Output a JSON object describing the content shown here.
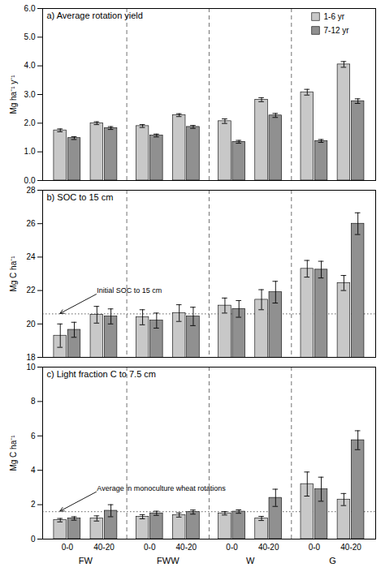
{
  "chart_data": [
    {
      "type": "bar",
      "title": "a) Average rotation yield",
      "ylabel": "Mg ha⁻¹ y⁻¹",
      "categories": [
        "0-0",
        "40-20",
        "0-0",
        "40-20",
        "0-0",
        "40-20",
        "0-0",
        "40-20"
      ],
      "groups": [
        "FW",
        "FWW",
        "W",
        "G"
      ],
      "series": [
        {
          "name": "1-6 yr",
          "color": "#c8c8c8",
          "values": [
            1.75,
            2.0,
            1.9,
            2.28,
            2.07,
            2.82,
            3.08,
            4.05
          ],
          "errors": [
            0.05,
            0.05,
            0.05,
            0.05,
            0.08,
            0.07,
            0.1,
            0.1
          ]
        },
        {
          "name": "7-12 yr",
          "color": "#909090",
          "values": [
            1.48,
            1.83,
            1.57,
            1.87,
            1.35,
            2.27,
            1.38,
            2.77
          ],
          "errors": [
            0.05,
            0.05,
            0.05,
            0.05,
            0.05,
            0.07,
            0.05,
            0.08
          ]
        }
      ],
      "ylim": [
        0,
        6
      ],
      "yticks": [
        0,
        1,
        2,
        3,
        4,
        5,
        6
      ],
      "legend": "upper right",
      "tick_labels": "y"
    },
    {
      "type": "bar",
      "title": "b) SOC to 15 cm",
      "ylabel": "Mg C ha⁻¹",
      "categories": [
        "0-0",
        "40-20",
        "0-0",
        "40-20",
        "0-0",
        "40-20",
        "0-0",
        "40-20"
      ],
      "groups": [
        "FW",
        "FWW",
        "W",
        "G"
      ],
      "series": [
        {
          "name": "1-6 yr",
          "color": "#c8c8c8",
          "values": [
            19.3,
            20.55,
            20.4,
            20.65,
            21.1,
            21.45,
            23.3,
            22.45
          ],
          "errors": [
            0.7,
            0.5,
            0.45,
            0.5,
            0.45,
            0.6,
            0.5,
            0.45
          ]
        },
        {
          "name": "7-12 yr",
          "color": "#909090",
          "values": [
            19.65,
            20.45,
            20.2,
            20.45,
            20.9,
            21.9,
            23.25,
            26.0
          ],
          "errors": [
            0.45,
            0.45,
            0.45,
            0.55,
            0.5,
            0.65,
            0.5,
            0.65
          ]
        }
      ],
      "ylim": [
        18,
        28
      ],
      "yticks": [
        18,
        20,
        22,
        24,
        26,
        28
      ],
      "ref_line": 20.6,
      "annotation": "Initial SOC to 15 cm",
      "tick_labels": "y"
    },
    {
      "type": "bar",
      "title": "c) Light fraction C to 7.5 cm",
      "ylabel": "Mg C ha⁻¹",
      "categories": [
        "0-0",
        "40-20",
        "0-0",
        "40-20",
        "0-0",
        "40-20",
        "0-0",
        "40-20"
      ],
      "groups": [
        "FW",
        "FWW",
        "W",
        "G"
      ],
      "series": [
        {
          "name": "1-6 yr",
          "color": "#c8c8c8",
          "values": [
            1.1,
            1.2,
            1.3,
            1.4,
            1.5,
            1.2,
            3.2,
            2.3
          ],
          "errors": [
            0.1,
            0.15,
            0.12,
            0.12,
            0.1,
            0.12,
            0.7,
            0.35
          ]
        },
        {
          "name": "7-12 yr",
          "color": "#909090",
          "values": [
            1.2,
            1.65,
            1.5,
            1.57,
            1.6,
            2.4,
            2.9,
            5.75
          ],
          "errors": [
            0.1,
            0.35,
            0.12,
            0.12,
            0.1,
            0.5,
            0.7,
            0.55
          ]
        }
      ],
      "ylim": [
        0,
        10
      ],
      "yticks": [
        0,
        2,
        4,
        6,
        8,
        10
      ],
      "ref_line": 1.6,
      "annotation": "Average in monoculture wheat rotations"
    }
  ]
}
